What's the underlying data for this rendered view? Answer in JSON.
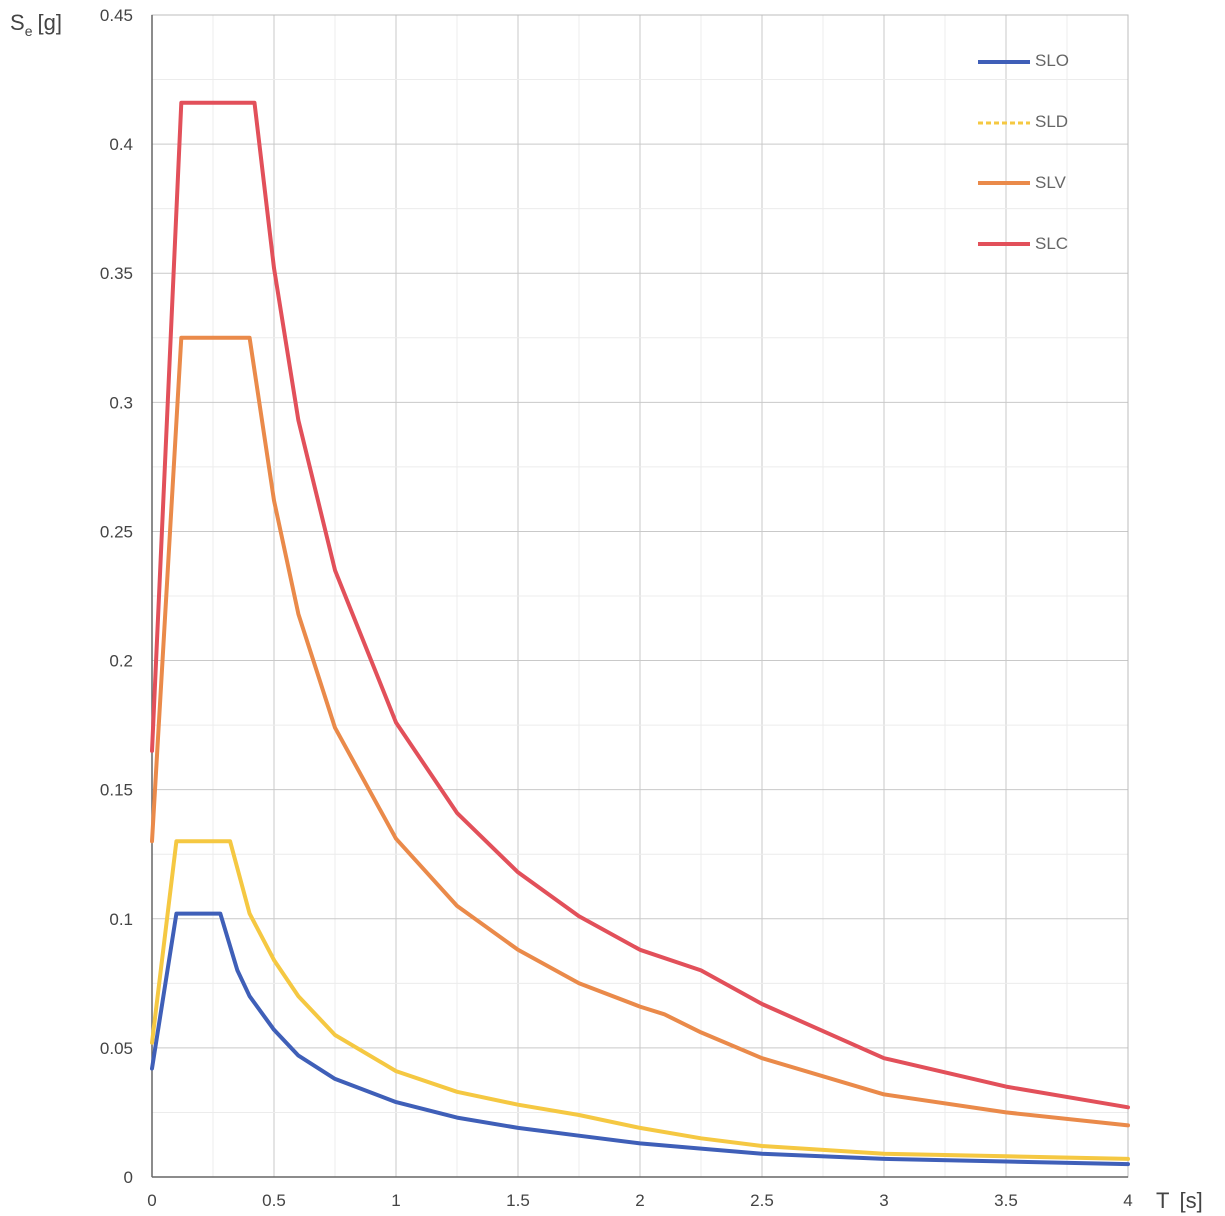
{
  "chart_data": {
    "type": "line",
    "title": "",
    "ylabel_main": "S",
    "ylabel_sub": "e",
    "ylabel_unit": "[g]",
    "xlabel_main": "T",
    "xlabel_unit": "[s]",
    "xlim": [
      0,
      4
    ],
    "ylim": [
      0,
      0.45
    ],
    "x_ticks": [
      0,
      0.5,
      1,
      1.5,
      2,
      2.5,
      3,
      3.5,
      4
    ],
    "x_tick_labels": [
      "0",
      "0.5",
      "1",
      "1.5",
      "2",
      "2.5",
      "3",
      "3.5",
      "4"
    ],
    "y_ticks": [
      0,
      0.05,
      0.1,
      0.15,
      0.2,
      0.25,
      0.3,
      0.35,
      0.4,
      0.45
    ],
    "y_tick_labels": [
      "0",
      "0.05",
      "0.1",
      "0.15",
      "0.2",
      "0.25",
      "0.3",
      "0.35",
      "0.4",
      "0.45"
    ],
    "grid": true,
    "legend_position": "top-right",
    "series": [
      {
        "name": "SLO",
        "color": "#3f5fb8",
        "x": [
          0,
          0.1,
          0.28,
          0.35,
          0.4,
          0.5,
          0.6,
          0.75,
          1.0,
          1.25,
          1.5,
          1.75,
          2.0,
          2.25,
          2.5,
          3.0,
          3.5,
          4.0
        ],
        "y": [
          0.042,
          0.102,
          0.102,
          0.08,
          0.07,
          0.057,
          0.047,
          0.038,
          0.029,
          0.023,
          0.019,
          0.016,
          0.013,
          0.011,
          0.009,
          0.007,
          0.006,
          0.005
        ]
      },
      {
        "name": "SLD",
        "color": "#f5c842",
        "x": [
          0,
          0.1,
          0.32,
          0.4,
          0.5,
          0.6,
          0.75,
          1.0,
          1.25,
          1.5,
          1.75,
          2.0,
          2.25,
          2.5,
          3.0,
          3.5,
          4.0
        ],
        "y": [
          0.052,
          0.13,
          0.13,
          0.102,
          0.084,
          0.07,
          0.055,
          0.041,
          0.033,
          0.028,
          0.024,
          0.019,
          0.015,
          0.012,
          0.009,
          0.008,
          0.007
        ]
      },
      {
        "name": "SLV",
        "color": "#ea8a4a",
        "x": [
          0,
          0.12,
          0.4,
          0.5,
          0.6,
          0.75,
          1.0,
          1.25,
          1.5,
          1.75,
          2.0,
          2.1,
          2.25,
          2.5,
          3.0,
          3.5,
          4.0
        ],
        "y": [
          0.13,
          0.325,
          0.325,
          0.262,
          0.218,
          0.174,
          0.131,
          0.105,
          0.088,
          0.075,
          0.066,
          0.063,
          0.056,
          0.046,
          0.032,
          0.025,
          0.02
        ]
      },
      {
        "name": "SLC",
        "color": "#e2505a",
        "x": [
          0,
          0.12,
          0.42,
          0.5,
          0.6,
          0.75,
          1.0,
          1.25,
          1.5,
          1.75,
          2.0,
          2.25,
          2.5,
          3.0,
          3.5,
          4.0
        ],
        "y": [
          0.165,
          0.416,
          0.416,
          0.352,
          0.293,
          0.235,
          0.176,
          0.141,
          0.118,
          0.101,
          0.088,
          0.08,
          0.067,
          0.046,
          0.035,
          0.027
        ]
      }
    ]
  }
}
